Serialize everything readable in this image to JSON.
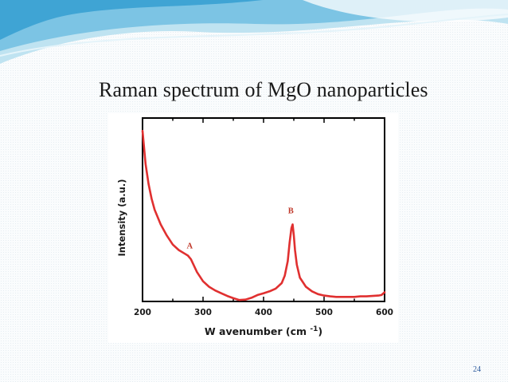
{
  "slide": {
    "title": "Raman spectrum of MgO nanoparticles",
    "page_number": "24",
    "colors": {
      "wave_primary": "#3fa4d4",
      "wave_light": "#bfe3f1",
      "page_number": "#2d5b9e"
    }
  },
  "chart_data": {
    "type": "line",
    "title": "",
    "xlabel": "W avenumber (cm",
    "xlabel_superscript": "-1",
    "xlabel_suffix": ")",
    "ylabel": "Intensity (a.u.)",
    "xlim": [
      200,
      600
    ],
    "ylim": [
      0,
      100
    ],
    "xticks": [
      200,
      300,
      400,
      500,
      600
    ],
    "y_tick_labels_shown": false,
    "grid": false,
    "legend": "none",
    "series": [
      {
        "color": "#e03030",
        "x": [
          200,
          205,
          210,
          215,
          220,
          230,
          240,
          250,
          260,
          270,
          275,
          280,
          290,
          300,
          310,
          320,
          330,
          340,
          350,
          360,
          370,
          380,
          390,
          400,
          410,
          420,
          430,
          435,
          440,
          443,
          446,
          448,
          450,
          452,
          455,
          460,
          470,
          480,
          490,
          500,
          510,
          520,
          530,
          540,
          550,
          560,
          570,
          580,
          590,
          595,
          600
        ],
        "y": [
          93,
          75,
          64,
          56,
          50,
          42,
          36,
          31,
          28,
          26,
          25,
          23,
          16,
          11,
          8,
          6,
          4.5,
          3,
          1.8,
          0.8,
          1,
          2,
          3.5,
          4.5,
          5.5,
          7,
          10,
          14,
          22,
          32,
          40,
          42,
          36,
          28,
          20,
          13,
          8,
          5.5,
          4,
          3.2,
          2.8,
          2.5,
          2.5,
          2.5,
          2.5,
          2.8,
          2.8,
          3,
          3.2,
          3.5,
          5
        ]
      }
    ],
    "annotations": [
      {
        "text": "A",
        "x": 278,
        "y": 29
      },
      {
        "text": "B",
        "x": 445,
        "y": 48
      }
    ]
  }
}
